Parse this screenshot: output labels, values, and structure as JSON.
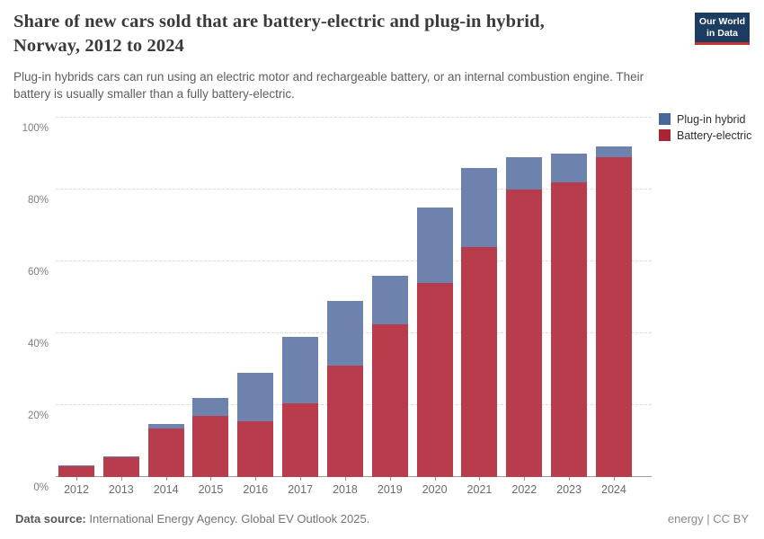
{
  "header": {
    "title": "Share of new cars sold that are battery-electric and plug-in hybrid,\nNorway, 2012 to 2024",
    "subtitle": "Plug-in hybrids cars can run using an electric motor and rechargeable battery, or an internal combustion engine. Their\nbattery is usually smaller than a fully battery-electric.",
    "logo": {
      "line1": "Our World",
      "line2": "in Data",
      "bg_color": "#1c3c62",
      "accent_color": "#c4352c"
    }
  },
  "legend": [
    {
      "label": "Plug-in hybrid",
      "color": "#47689c"
    },
    {
      "label": "Battery-electric",
      "color": "#ab2433"
    }
  ],
  "chart_data": {
    "type": "bar",
    "stacked": true,
    "title": "Share of new cars sold that are battery-electric and plug-in hybrid, Norway, 2012 to 2024",
    "xlabel": "",
    "ylabel": "",
    "ylim": [
      0,
      100
    ],
    "grid": "horizontal-dashed",
    "legend_position": "top-right",
    "categories": [
      "2012",
      "2013",
      "2014",
      "2015",
      "2016",
      "2017",
      "2018",
      "2019",
      "2020",
      "2021",
      "2022",
      "2023",
      "2024"
    ],
    "series": [
      {
        "name": "Battery-electric",
        "color": "#b93c4c",
        "values": [
          3.0,
          5.5,
          13.5,
          17.0,
          15.5,
          20.5,
          31.0,
          42.5,
          54.0,
          64.0,
          80.0,
          82.0,
          89.0
        ]
      },
      {
        "name": "Plug-in hybrid",
        "color": "#6d83ad",
        "values": [
          0.3,
          0.3,
          1.3,
          5.0,
          13.5,
          18.5,
          18.0,
          13.5,
          21.0,
          22.0,
          9.0,
          8.0,
          3.0
        ]
      }
    ],
    "totals": [
      3.3,
      5.8,
      14.8,
      22.0,
      29.0,
      39.0,
      49.0,
      56.0,
      75.0,
      86.0,
      89.0,
      90.0,
      92.0
    ],
    "yticks": [
      {
        "value": 0,
        "label": "0%"
      },
      {
        "value": 20,
        "label": "20%"
      },
      {
        "value": 40,
        "label": "40%"
      },
      {
        "value": 60,
        "label": "60%"
      },
      {
        "value": 80,
        "label": "80%"
      },
      {
        "value": 100,
        "label": "100%"
      }
    ]
  },
  "footer": {
    "source_label": "Data source:",
    "source_value": " International Energy Agency. Global EV Outlook 2025.",
    "license": "energy | CC BY"
  }
}
